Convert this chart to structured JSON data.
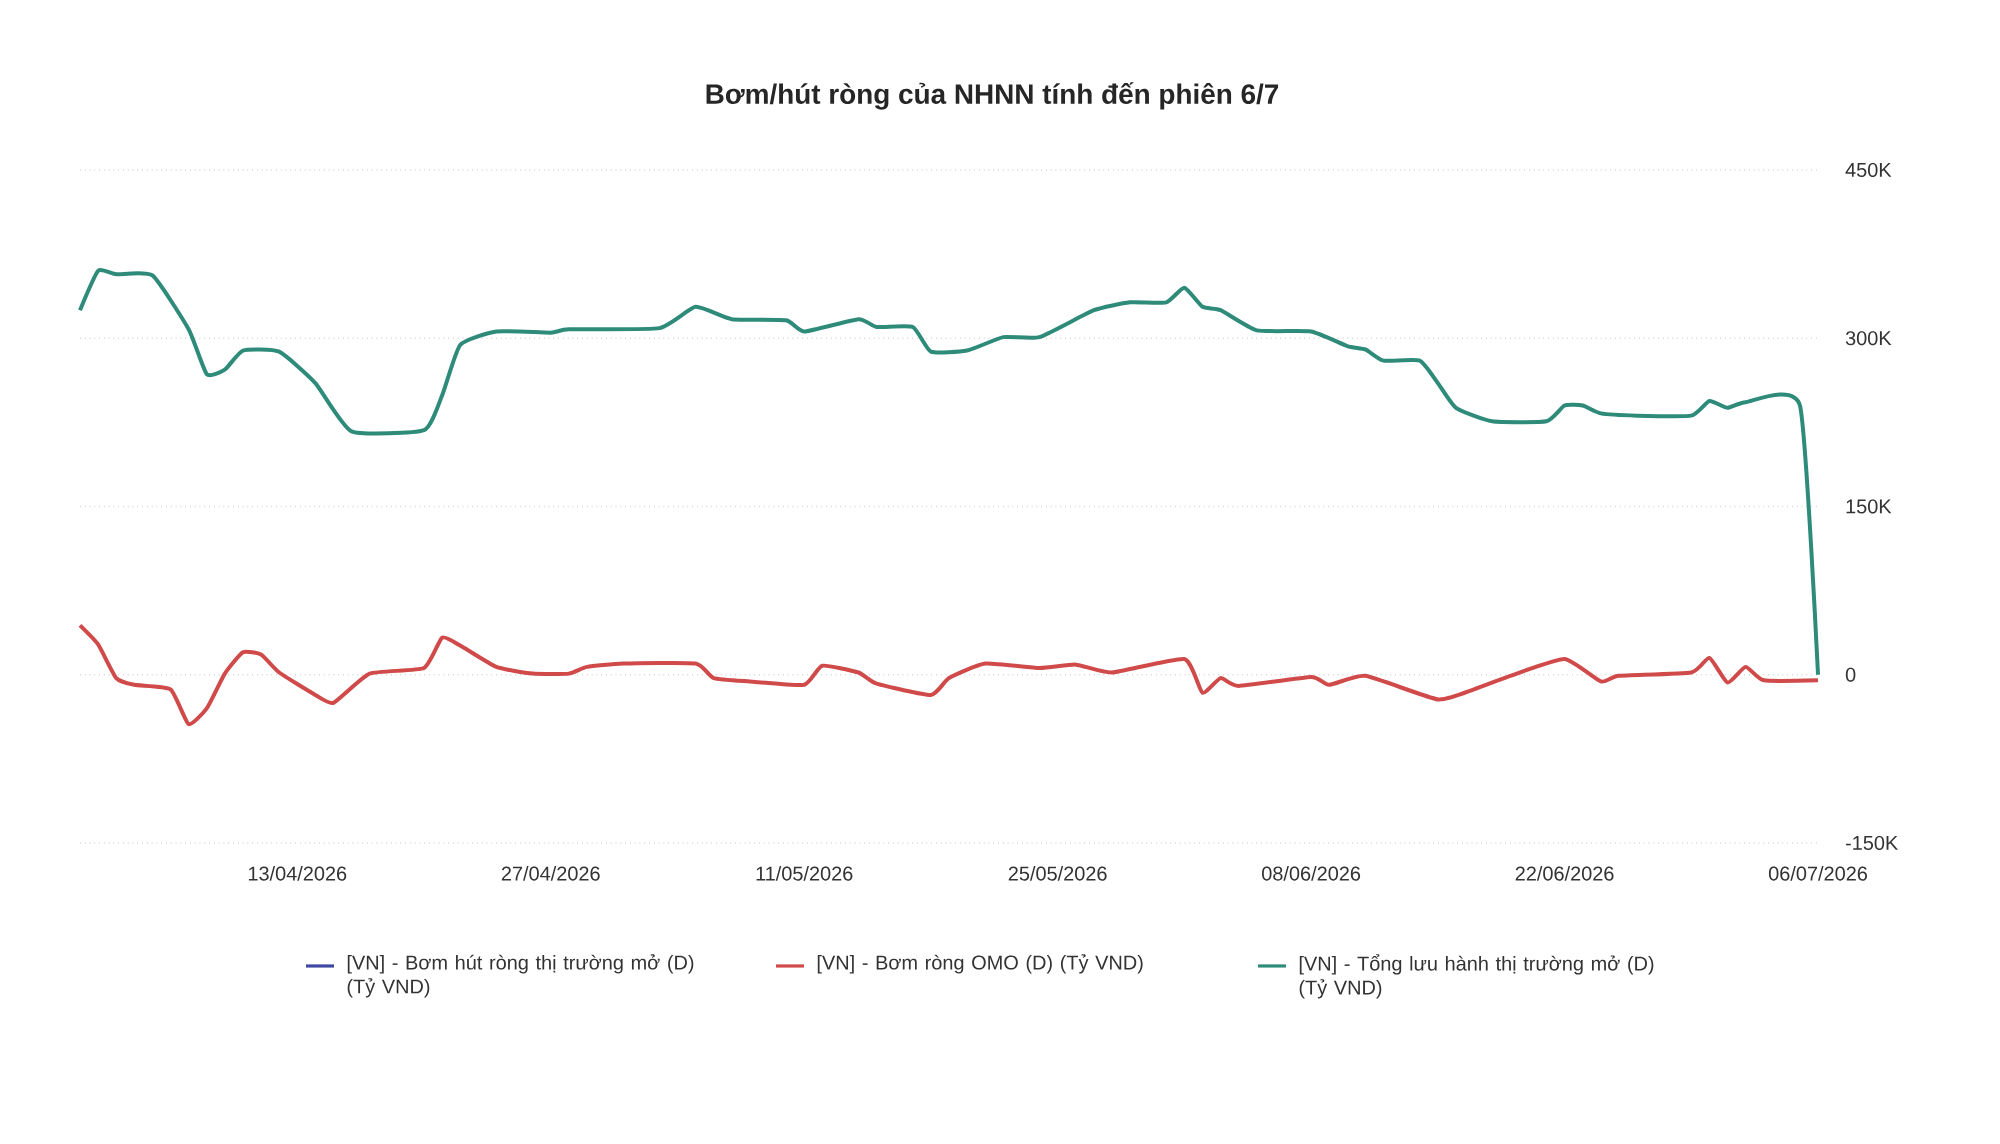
{
  "chart_data": {
    "type": "line",
    "title": "Bơm/hút ròng của NHNN tính đến phiên 6/7",
    "xlim": [
      "2026-04-01",
      "2026-07-06"
    ],
    "xticks": [
      {
        "value": "2026-04-13",
        "label": "13/04/2026"
      },
      {
        "value": "2026-04-27",
        "label": "27/04/2026"
      },
      {
        "value": "2026-05-11",
        "label": "11/05/2026"
      },
      {
        "value": "2026-05-25",
        "label": "25/05/2026"
      },
      {
        "value": "2026-06-08",
        "label": "08/06/2026"
      },
      {
        "value": "2026-06-22",
        "label": "22/06/2026"
      },
      {
        "value": "2026-07-06",
        "label": "06/07/2026"
      }
    ],
    "ylim": [
      -150000,
      450000
    ],
    "yticks": [
      {
        "value": -150000,
        "label": "-150K"
      },
      0,
      {
        "value": 150000,
        "label": "150K"
      },
      {
        "value": 300000,
        "label": "300K"
      },
      {
        "value": 450000,
        "label": "450K"
      }
    ],
    "grid": "y",
    "legend": "bottom",
    "series": [
      {
        "name": "[VN] - Bơm hút ròng thị trường mở (D) (Tỷ VND)",
        "color": "#3f48a0"
      },
      {
        "name": "[VN] - Bơm ròng OMO (D) (Tỷ VND)",
        "color": "#d04a4a",
        "x": [
          "2026-04-01",
          "2026-04-02",
          "2026-04-03",
          "2026-04-04",
          "2026-04-06",
          "2026-04-07",
          "2026-04-08",
          "2026-04-09",
          "2026-04-10",
          "2026-04-11",
          "2026-04-12",
          "2026-04-14",
          "2026-04-15",
          "2026-04-17",
          "2026-04-20",
          "2026-04-21",
          "2026-04-22",
          "2026-04-24",
          "2026-04-26",
          "2026-04-28",
          "2026-04-29",
          "2026-05-01",
          "2026-05-05",
          "2026-05-06",
          "2026-05-08",
          "2026-05-11",
          "2026-05-12",
          "2026-05-14",
          "2026-05-15",
          "2026-05-18",
          "2026-05-19",
          "2026-05-21",
          "2026-05-24",
          "2026-05-26",
          "2026-05-28",
          "2026-06-01",
          "2026-06-02",
          "2026-06-03",
          "2026-06-04",
          "2026-06-08",
          "2026-06-09",
          "2026-06-11",
          "2026-06-15",
          "2026-06-17",
          "2026-06-19",
          "2026-06-22",
          "2026-06-24",
          "2026-06-25",
          "2026-06-29",
          "2026-06-30",
          "2026-07-01",
          "2026-07-02",
          "2026-07-03",
          "2026-07-06"
        ],
        "values": [
          44000,
          27000,
          -3000,
          -9000,
          -13000,
          -44000,
          -30000,
          1000,
          20000,
          18000,
          2000,
          -18000,
          -25000,
          1000,
          6000,
          33000,
          26000,
          7000,
          1000,
          1000,
          7000,
          10000,
          10000,
          -3000,
          -6000,
          -9000,
          8000,
          2000,
          -8000,
          -18000,
          -3000,
          10000,
          6000,
          9000,
          2000,
          14000,
          -16000,
          -3000,
          -10000,
          -2000,
          -9000,
          -1000,
          -22000,
          -13000,
          -1000,
          14000,
          -6000,
          -1000,
          2000,
          15000,
          -7000,
          7000,
          -5000,
          -5000
        ]
      },
      {
        "name": "[VN] - Tổng lưu hành thị trường mở (D) (Tỷ VND)",
        "color": "#2e8b7a",
        "x": [
          "2026-04-01",
          "2026-04-02",
          "2026-04-03",
          "2026-04-05",
          "2026-04-07",
          "2026-04-08",
          "2026-04-09",
          "2026-04-10",
          "2026-04-12",
          "2026-04-14",
          "2026-04-16",
          "2026-04-20",
          "2026-04-21",
          "2026-04-22",
          "2026-04-24",
          "2026-04-27",
          "2026-04-28",
          "2026-05-03",
          "2026-05-05",
          "2026-05-07",
          "2026-05-10",
          "2026-05-11",
          "2026-05-14",
          "2026-05-15",
          "2026-05-17",
          "2026-05-18",
          "2026-05-20",
          "2026-05-22",
          "2026-05-24",
          "2026-05-27",
          "2026-05-29",
          "2026-05-31",
          "2026-06-01",
          "2026-06-02",
          "2026-06-03",
          "2026-06-05",
          "2026-06-08",
          "2026-06-10",
          "2026-06-11",
          "2026-06-12",
          "2026-06-14",
          "2026-06-15",
          "2026-06-16",
          "2026-06-18",
          "2026-06-21",
          "2026-06-22",
          "2026-06-23",
          "2026-06-24",
          "2026-06-26",
          "2026-06-29",
          "2026-06-30",
          "2026-07-01",
          "2026-07-02",
          "2026-07-05",
          "2026-07-06"
        ],
        "values": [
          325000,
          360000,
          357000,
          356000,
          308000,
          268000,
          272000,
          289000,
          288000,
          260000,
          217000,
          218000,
          249000,
          294000,
          306000,
          305000,
          308000,
          309000,
          328000,
          317000,
          316000,
          306000,
          317000,
          310000,
          310000,
          288000,
          289000,
          301000,
          301000,
          325000,
          332000,
          332000,
          345000,
          328000,
          325000,
          307000,
          306000,
          293000,
          290000,
          280000,
          280000,
          260000,
          238000,
          226000,
          226000,
          240000,
          240000,
          233000,
          231000,
          231000,
          244000,
          238000,
          243000,
          240000,
          0
        ]
      }
    ]
  }
}
